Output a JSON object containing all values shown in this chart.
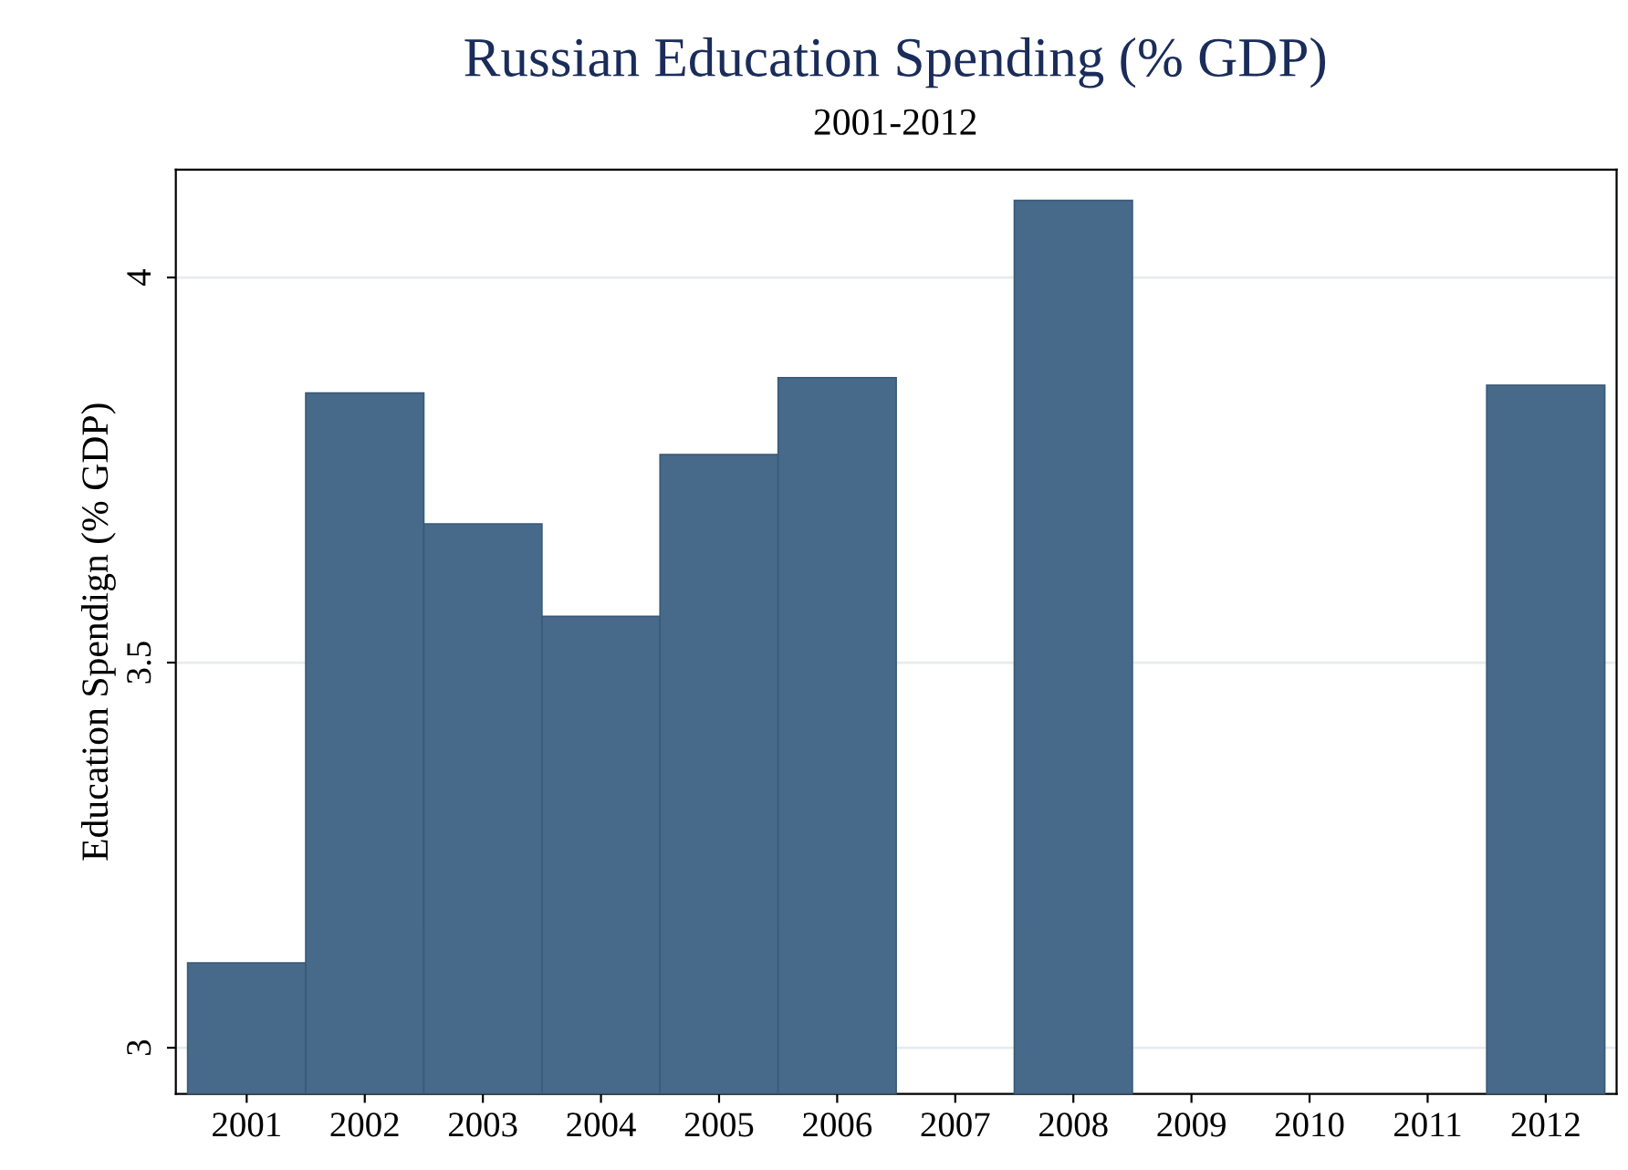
{
  "chart_data": {
    "type": "bar",
    "title": "Russian Education Spending (% GDP)",
    "subtitle": "2001-2012",
    "ylabel": "Education Spendign (% GDP)",
    "categories": [
      "2001",
      "2002",
      "2003",
      "2004",
      "2005",
      "2006",
      "2007",
      "2008",
      "2009",
      "2010",
      "2011",
      "2012"
    ],
    "values": [
      3.11,
      3.85,
      3.68,
      3.56,
      3.77,
      3.87,
      null,
      4.1,
      null,
      null,
      null,
      3.86
    ],
    "color": "#476a8a",
    "ylim": [
      2.94,
      4.14
    ],
    "yticks": [
      3,
      3.5,
      4
    ],
    "grid": "y"
  }
}
